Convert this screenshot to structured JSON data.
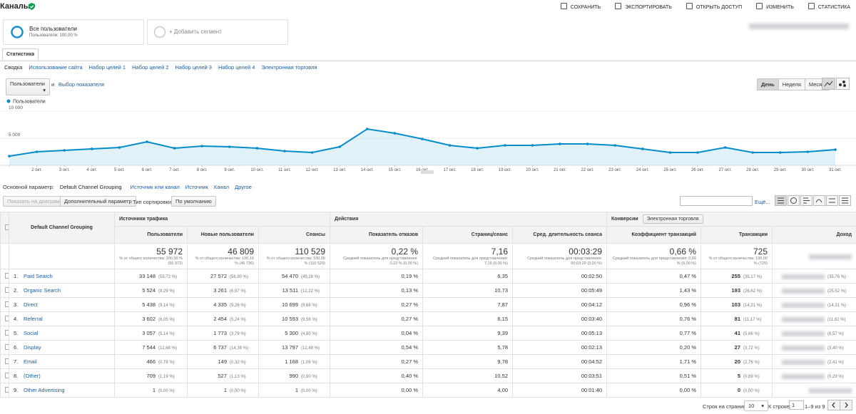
{
  "header": {
    "title": "Каналы",
    "actions": [
      "СОХРАНИТЬ",
      "ЭКСПОРТИРОВАТЬ",
      "ОТКРЫТЬ ДОСТУП",
      "ИЗМЕНИТЬ",
      "СТАТИСТИКА"
    ]
  },
  "segments": {
    "active": {
      "name": "Все пользователи",
      "detail": "Пользователи: 100,00 %"
    },
    "add": "+ Добавить сегмент"
  },
  "tab": "Статистика",
  "subtabs": [
    "Сводка",
    "Использование сайта",
    "Набор целей 1",
    "Набор целей 2",
    "Набор целей 3",
    "Набор целей 4",
    "Электронная торговля"
  ],
  "controls": {
    "metric": "Пользователи",
    "and": "и",
    "pick": "Выбор показателя",
    "periods": [
      "День",
      "Неделя",
      "Месяц"
    ]
  },
  "chart_data": {
    "type": "line",
    "categories": [
      null,
      "2 окт.",
      "3 окт.",
      "4 окт.",
      "5 окт.",
      "6 окт.",
      "7 окт.",
      "8 окт.",
      "9 окт.",
      "10 окт.",
      "11 окт.",
      "12 окт.",
      "13 окт.",
      "14 окт.",
      "15 окт.",
      "16 окт.",
      "17 окт.",
      "18 окт.",
      "19 окт.",
      "20 окт.",
      "21 окт.",
      "22 окт.",
      "23 окт.",
      "24 окт.",
      "25 окт.",
      "26 окт.",
      "27 окт.",
      "28 окт.",
      "29 окт.",
      "30 окт.",
      "31 окт."
    ],
    "series": [
      {
        "name": "Пользователи",
        "color": "#058dc7",
        "values": [
          1700,
          2500,
          2760,
          3030,
          3290,
          4340,
          3160,
          3550,
          3420,
          3160,
          2630,
          2370,
          3420,
          6710,
          5920,
          4870,
          3680,
          3160,
          3680,
          3680,
          3950,
          3950,
          3680,
          3030,
          2370,
          2370,
          3290,
          2370,
          2370,
          2500,
          2890
        ]
      }
    ],
    "ylim": [
      0,
      10000
    ],
    "yticks": [
      {
        "value": 5000,
        "label": "5 000"
      },
      {
        "value": 10000,
        "label": "10 000"
      }
    ],
    "grid": true
  },
  "dimensions": {
    "label": "Основной параметр:",
    "items": [
      "Default Channel Grouping",
      "Источник или канал",
      "Источник",
      "Канал",
      "Другое"
    ]
  },
  "toolbar": {
    "plot": "Показать на диаграмме",
    "secondary": "Дополнительный параметр",
    "sort_label": "Тип сортировки:",
    "sort": "По умолчанию",
    "more": "Ещё..."
  },
  "table": {
    "dimension": "Default Channel Grouping",
    "groups": [
      "Источники трафика",
      "Действия",
      "Конверсии"
    ],
    "conversion_filter": "Электронная торговля",
    "columns": [
      "Пользователи",
      "Новые пользователи",
      "Сеансы",
      "Показатель отказов",
      "Страниц/сеанс",
      "Сред. длительность сеанса",
      "Коэффициент транзакций",
      "Транзакции",
      "Доход"
    ],
    "totals": [
      [
        "55 972",
        "% от общего количества: 100,00 % (55 972)"
      ],
      [
        "46 809",
        "% от общего количества: 100,16 % (46 736)"
      ],
      [
        "110 529",
        "% от общего количества: 100,00 % (110 529)"
      ],
      [
        "0,22 %",
        "Средний показатель для представления: 0,22 % (0,00 %)"
      ],
      [
        "7,16",
        "Средний показатель для представления: 7,16 (0,00 %)"
      ],
      [
        "00:03:29",
        "Средний показатель для представления: 00:03:29 (0,00 %)"
      ],
      [
        "0,66 %",
        "Средний показатель для представления: 0,66 % (0,00 %)"
      ],
      [
        "725",
        "% от общего количества: 100,00 % (725)"
      ]
    ],
    "rows": [
      {
        "index": "1.",
        "name": "Paid Search",
        "cells": [
          [
            "33 148",
            "(55,72 %)"
          ],
          [
            "27 572",
            "(58,90 %)"
          ],
          [
            "54 470",
            "(49,28 %)"
          ],
          "0,19 %",
          "6,35",
          "00:02:50",
          "0,47 %",
          [
            "255",
            "(35,17 %)"
          ]
        ],
        "revenue_share": "(35,76 %)"
      },
      {
        "index": "2.",
        "name": "Organic Search",
        "cells": [
          [
            "5 524",
            "(9,29 %)"
          ],
          [
            "3 261",
            "(6,97 %)"
          ],
          [
            "13 511",
            "(12,22 %)"
          ],
          "0,13 %",
          "10,73",
          "00:05:49",
          "1,43 %",
          [
            "193",
            "(26,62 %)"
          ]
        ],
        "revenue_share": "(25,52 %)"
      },
      {
        "index": "3.",
        "name": "Direct",
        "cells": [
          [
            "5 438",
            "(9,14 %)"
          ],
          [
            "4 335",
            "(9,26 %)"
          ],
          [
            "10 699",
            "(9,68 %)"
          ],
          "0,27 %",
          "7,87",
          "00:04:12",
          "0,96 %",
          [
            "103",
            "(14,21 %)"
          ]
        ],
        "revenue_share": "(14,31 %)"
      },
      {
        "index": "4.",
        "name": "Referral",
        "cells": [
          [
            "3 602",
            "(6,05 %)"
          ],
          [
            "2 454",
            "(5,24 %)"
          ],
          [
            "10 593",
            "(9,58 %)"
          ],
          "0,27 %",
          "6,15",
          "00:03:40",
          "0,76 %",
          [
            "81",
            "(11,17 %)"
          ]
        ],
        "revenue_share": "(11,82 %)"
      },
      {
        "index": "5.",
        "name": "Social",
        "cells": [
          [
            "3 057",
            "(5,14 %)"
          ],
          [
            "1 773",
            "(3,79 %)"
          ],
          [
            "5 300",
            "(4,80 %)"
          ],
          "0,04 %",
          "9,39",
          "00:05:13",
          "0,77 %",
          [
            "41",
            "(5,66 %)"
          ]
        ],
        "revenue_share": "(8,57 %)"
      },
      {
        "index": "6.",
        "name": "Display",
        "cells": [
          [
            "7 544",
            "(12,68 %)"
          ],
          [
            "6 737",
            "(14,39 %)"
          ],
          [
            "13 797",
            "(12,48 %)"
          ],
          "0,54 %",
          "5,78",
          "00:02:13",
          "0,20 %",
          [
            "27",
            "(3,72 %)"
          ]
        ],
        "revenue_share": "(3,40 %)"
      },
      {
        "index": "7.",
        "name": "Email",
        "cells": [
          [
            "466",
            "(0,78 %)"
          ],
          [
            "149",
            "(0,32 %)"
          ],
          [
            "1 168",
            "(1,06 %)"
          ],
          "0,27 %",
          "9,78",
          "00:04:52",
          "1,71 %",
          [
            "20",
            "(2,76 %)"
          ]
        ],
        "revenue_share": "(2,41 %)"
      },
      {
        "index": "8.",
        "name": "(Other)",
        "cells": [
          [
            "709",
            "(1,19 %)"
          ],
          [
            "527",
            "(1,13 %)"
          ],
          [
            "990",
            "(0,90 %)"
          ],
          "0,40 %",
          "10,52",
          "00:03:51",
          "0,51 %",
          [
            "5",
            "(0,69 %)"
          ]
        ],
        "revenue_share": "(0,29 %)"
      },
      {
        "index": "9.",
        "name": "Other Advertising",
        "cells": [
          [
            "1",
            "(0,00 %)"
          ],
          [
            "1",
            "(0,00 %)"
          ],
          [
            "1",
            "(0,00 %)"
          ],
          "0,00 %",
          "4,00",
          "00:01:40",
          "0,00 %",
          [
            "0",
            "(0,00 %)"
          ]
        ]
      }
    ]
  },
  "pagination": {
    "rows_label": "Строк на странице:",
    "rows": "10",
    "goto_label": "К строке:",
    "goto": "1",
    "range": "1–9 из 9"
  }
}
